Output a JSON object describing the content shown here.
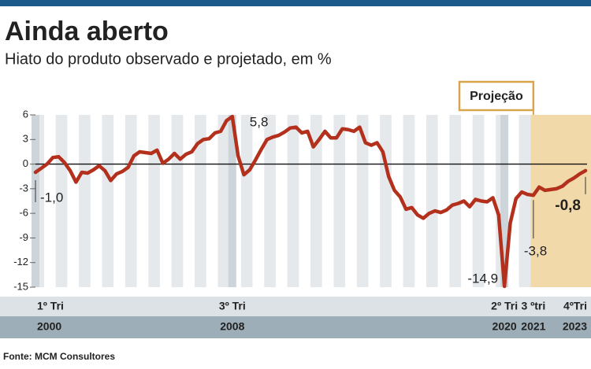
{
  "chart_data": {
    "type": "line",
    "title": "Ainda aberto",
    "subtitle": "Hiato do produto observado e projetado, em %",
    "source": "Fonte: MCM Consultores",
    "annotation": "Projeção",
    "projection_start": 86,
    "categories": [
      "1º Tri",
      null,
      null,
      null,
      null,
      null,
      null,
      null,
      null,
      null,
      null,
      null,
      null,
      null,
      null,
      null,
      null,
      null,
      null,
      null,
      null,
      null,
      null,
      null,
      null,
      null,
      null,
      null,
      null,
      null,
      null,
      null,
      null,
      null,
      "3º Tri",
      null,
      null,
      null,
      null,
      null,
      null,
      null,
      null,
      null,
      null,
      null,
      null,
      null,
      null,
      null,
      null,
      null,
      null,
      null,
      null,
      null,
      null,
      null,
      null,
      null,
      null,
      null,
      null,
      null,
      null,
      null,
      null,
      null,
      null,
      null,
      null,
      null,
      null,
      null,
      null,
      null,
      null,
      null,
      null,
      null,
      null,
      "2º Tri",
      null,
      null,
      null,
      null,
      "3 ºtri",
      null,
      null,
      null,
      null,
      null,
      null,
      null,
      null,
      "4ºTri"
    ],
    "years": [
      "2000",
      null,
      null,
      null,
      null,
      null,
      null,
      null,
      null,
      null,
      null,
      null,
      null,
      null,
      null,
      null,
      null,
      null,
      null,
      null,
      null,
      null,
      null,
      null,
      null,
      null,
      null,
      null,
      null,
      null,
      null,
      null,
      null,
      null,
      "2008",
      null,
      null,
      null,
      null,
      null,
      null,
      null,
      null,
      null,
      null,
      null,
      null,
      null,
      null,
      null,
      null,
      null,
      null,
      null,
      null,
      null,
      null,
      null,
      null,
      null,
      null,
      null,
      null,
      null,
      null,
      null,
      null,
      null,
      null,
      null,
      null,
      null,
      null,
      null,
      null,
      null,
      null,
      null,
      null,
      null,
      null,
      "2020",
      null,
      null,
      null,
      null,
      "2021",
      null,
      null,
      null,
      null,
      null,
      null,
      null,
      null,
      "2023"
    ],
    "series": [
      {
        "name": "Hiato do produto",
        "color": "#b3301c",
        "values": [
          -1.0,
          -0.5,
          0,
          0.8,
          0.9,
          0.2,
          -0.8,
          -2.2,
          -1.0,
          -1.1,
          -0.7,
          -0.2,
          -0.8,
          -2.0,
          -1.2,
          -0.9,
          -0.4,
          1.0,
          1.5,
          1.4,
          1.3,
          1.7,
          0.1,
          0.6,
          1.3,
          0.6,
          1.2,
          1.5,
          2.5,
          3.0,
          3.1,
          3.8,
          4.0,
          5.3,
          5.8,
          1.0,
          -1.3,
          -0.7,
          0.5,
          1.8,
          3.0,
          3.3,
          3.5,
          3.9,
          4.4,
          4.5,
          3.8,
          4.0,
          2.1,
          3.0,
          4.0,
          3.2,
          3.2,
          4.3,
          4.2,
          4.0,
          4.5,
          2.6,
          2.3,
          2.6,
          1.5,
          -1.5,
          -3.2,
          -4.0,
          -5.5,
          -5.3,
          -6.2,
          -6.6,
          -6.0,
          -5.7,
          -5.9,
          -5.6,
          -5.0,
          -4.8,
          -4.5,
          -5.2,
          -4.3,
          -4.5,
          -4.6,
          -4.1,
          -6.2,
          -14.9,
          -7.2,
          -4.2,
          -3.4,
          -3.7,
          -3.8,
          -2.8,
          -3.2,
          -3.1,
          -3.0,
          -2.7,
          -2.1,
          -1.7,
          -1.2,
          -0.8
        ],
        "value_labels": [
          "-1,0",
          null,
          null,
          null,
          null,
          null,
          null,
          null,
          null,
          null,
          null,
          null,
          null,
          null,
          null,
          null,
          null,
          null,
          null,
          null,
          null,
          null,
          null,
          null,
          null,
          null,
          null,
          null,
          null,
          null,
          null,
          null,
          null,
          null,
          "5,8",
          null,
          null,
          null,
          null,
          null,
          null,
          null,
          null,
          null,
          null,
          null,
          null,
          null,
          null,
          null,
          null,
          null,
          null,
          null,
          null,
          null,
          null,
          null,
          null,
          null,
          null,
          null,
          null,
          null,
          null,
          null,
          null,
          null,
          null,
          null,
          null,
          null,
          null,
          null,
          null,
          null,
          null,
          null,
          null,
          null,
          null,
          "-14,9",
          null,
          null,
          null,
          null,
          "-3,8",
          null,
          null,
          null,
          null,
          null,
          null,
          null,
          null,
          "-0,8"
        ]
      }
    ],
    "ylim": [
      -15,
      6
    ],
    "yticks": [
      6,
      3,
      0,
      -3,
      -6,
      -9,
      -12,
      -15
    ]
  }
}
